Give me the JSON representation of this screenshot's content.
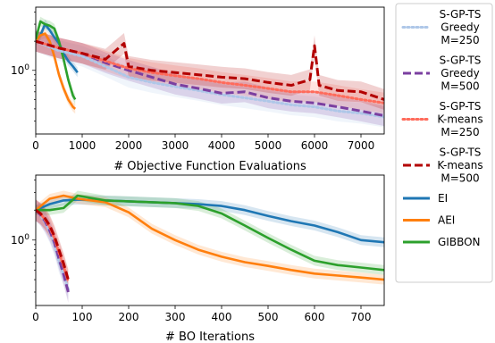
{
  "chart_data": [
    {
      "type": "line",
      "panel": "top",
      "xlabel": "# Objective Function Evaluations",
      "ylabel": "",
      "xlim": [
        0,
        7500
      ],
      "ylim": [
        0.22,
        4.5
      ],
      "yscale": "log",
      "xticks": [
        0,
        1000,
        2000,
        3000,
        4000,
        5000,
        6000,
        7000
      ],
      "yticks": [
        {
          "value": 1,
          "label": "10^0"
        }
      ],
      "series": [
        {
          "name": "EI",
          "color": "#1f77b4",
          "style": "solid",
          "x": [
            0,
            100,
            200,
            300,
            400,
            500,
            600,
            700,
            800,
            900
          ],
          "y": [
            2.0,
            2.3,
            3.0,
            2.6,
            2.2,
            1.9,
            1.5,
            1.25,
            1.1,
            0.95
          ]
        },
        {
          "name": "AEI",
          "color": "#ff7f0e",
          "style": "solid",
          "x": [
            0,
            100,
            200,
            300,
            400,
            500,
            600,
            700,
            800,
            850
          ],
          "y": [
            2.0,
            2.3,
            2.4,
            2.0,
            1.4,
            0.9,
            0.65,
            0.5,
            0.42,
            0.4
          ]
        },
        {
          "name": "GIBBON",
          "color": "#2ca02c",
          "style": "solid",
          "x": [
            0,
            100,
            200,
            300,
            400,
            500,
            600,
            700,
            800,
            850
          ],
          "y": [
            2.1,
            3.2,
            3.0,
            2.9,
            2.7,
            2.0,
            1.3,
            0.8,
            0.55,
            0.5
          ]
        },
        {
          "name": "S-GP-TS Greedy M=250",
          "color": "#aec7e8",
          "style": "dotted",
          "x": [
            0,
            500,
            1000,
            1500,
            2000,
            2500,
            3000,
            3500,
            4000,
            4500,
            5000,
            5500,
            6000,
            6500,
            7000,
            7500
          ],
          "y": [
            2.0,
            1.6,
            1.4,
            1.1,
            0.85,
            0.75,
            0.68,
            0.62,
            0.56,
            0.52,
            0.48,
            0.44,
            0.42,
            0.38,
            0.36,
            0.33
          ]
        },
        {
          "name": "S-GP-TS Greedy M=500",
          "color": "#7b3fa0",
          "style": "dashed",
          "x": [
            0,
            500,
            1000,
            1500,
            2000,
            2500,
            3000,
            3500,
            4000,
            4500,
            5000,
            5500,
            6000,
            6500,
            7000,
            7500
          ],
          "y": [
            2.0,
            1.7,
            1.5,
            1.2,
            1.0,
            0.85,
            0.72,
            0.65,
            0.58,
            0.6,
            0.52,
            0.48,
            0.46,
            0.42,
            0.38,
            0.34
          ]
        },
        {
          "name": "S-GP-TS K-means M=250",
          "color": "#ff6b5b",
          "style": "dotted",
          "x": [
            0,
            500,
            1000,
            1500,
            2000,
            2500,
            3000,
            3500,
            4000,
            4500,
            5000,
            5500,
            6000,
            6500,
            7000,
            7500
          ],
          "y": [
            2.0,
            1.7,
            1.5,
            1.25,
            1.05,
            0.95,
            0.88,
            0.82,
            0.75,
            0.7,
            0.65,
            0.6,
            0.6,
            0.55,
            0.5,
            0.46
          ]
        },
        {
          "name": "S-GP-TS K-means M=500",
          "color": "#b30000",
          "style": "dashed",
          "x": [
            0,
            500,
            1000,
            1500,
            1900,
            2000,
            2500,
            3000,
            3500,
            4000,
            4500,
            5000,
            5500,
            5900,
            6000,
            6100,
            6500,
            7000,
            7500
          ],
          "y": [
            2.0,
            1.7,
            1.5,
            1.3,
            1.9,
            1.1,
            1.0,
            0.95,
            0.9,
            0.85,
            0.82,
            0.75,
            0.7,
            0.8,
            1.8,
            0.7,
            0.62,
            0.6,
            0.5
          ]
        }
      ]
    },
    {
      "type": "line",
      "panel": "bottom",
      "xlabel": "# BO Iterations",
      "ylabel": "",
      "xlim": [
        0,
        750
      ],
      "ylim": [
        0.22,
        4.5
      ],
      "yscale": "log",
      "xticks": [
        0,
        100,
        200,
        300,
        400,
        500,
        600,
        700
      ],
      "yticks": [
        {
          "value": 1,
          "label": "10^0"
        }
      ],
      "series": [
        {
          "name": "EI",
          "color": "#1f77b4",
          "style": "solid",
          "x": [
            0,
            30,
            60,
            90,
            150,
            200,
            250,
            300,
            350,
            400,
            450,
            500,
            550,
            600,
            650,
            700,
            750
          ],
          "y": [
            2.0,
            2.3,
            2.5,
            2.55,
            2.5,
            2.45,
            2.4,
            2.35,
            2.3,
            2.2,
            2.0,
            1.75,
            1.55,
            1.4,
            1.2,
            1.0,
            0.95
          ]
        },
        {
          "name": "AEI",
          "color": "#ff7f0e",
          "style": "solid",
          "x": [
            0,
            30,
            60,
            90,
            150,
            200,
            250,
            300,
            350,
            400,
            450,
            500,
            550,
            600,
            650,
            700,
            750
          ],
          "y": [
            2.0,
            2.6,
            2.8,
            2.6,
            2.4,
            1.9,
            1.3,
            1.0,
            0.8,
            0.68,
            0.6,
            0.55,
            0.5,
            0.46,
            0.44,
            0.42,
            0.4
          ]
        },
        {
          "name": "GIBBON",
          "color": "#2ca02c",
          "style": "solid",
          "x": [
            0,
            30,
            60,
            90,
            150,
            200,
            250,
            300,
            350,
            400,
            450,
            500,
            550,
            600,
            650,
            700,
            750
          ],
          "y": [
            2.0,
            2.0,
            2.1,
            2.8,
            2.5,
            2.45,
            2.4,
            2.35,
            2.2,
            1.85,
            1.4,
            1.05,
            0.8,
            0.62,
            0.56,
            0.53,
            0.5
          ]
        },
        {
          "name": "S-GP-TS Greedy M=250",
          "color": "#aec7e8",
          "style": "dotted",
          "x": [
            0,
            10,
            20,
            30,
            40,
            50,
            60,
            70
          ],
          "y": [
            2.0,
            1.8,
            1.5,
            1.2,
            0.9,
            0.6,
            0.45,
            0.32
          ]
        },
        {
          "name": "S-GP-TS Greedy M=500",
          "color": "#7b3fa0",
          "style": "dashed",
          "x": [
            0,
            10,
            20,
            30,
            40,
            50,
            60,
            70
          ],
          "y": [
            2.0,
            1.8,
            1.55,
            1.25,
            0.95,
            0.65,
            0.45,
            0.3
          ]
        },
        {
          "name": "S-GP-TS K-means M=250",
          "color": "#ff6b5b",
          "style": "dotted",
          "x": [
            0,
            10,
            20,
            30,
            40,
            50,
            60,
            70
          ],
          "y": [
            2.0,
            1.85,
            1.6,
            1.35,
            1.05,
            0.75,
            0.55,
            0.38
          ]
        },
        {
          "name": "S-GP-TS K-means M=500",
          "color": "#b30000",
          "style": "dashed",
          "x": [
            0,
            10,
            20,
            30,
            40,
            50,
            60,
            70
          ],
          "y": [
            2.0,
            1.85,
            1.65,
            1.4,
            1.1,
            0.8,
            0.58,
            0.4
          ]
        }
      ]
    }
  ],
  "legend": {
    "placement": "right",
    "entries": [
      {
        "lines": [
          "S-GP-TS",
          "Greedy",
          "M=250"
        ],
        "color": "#aec7e8",
        "style": "dotted"
      },
      {
        "lines": [
          "S-GP-TS",
          "Greedy",
          "M=500"
        ],
        "color": "#7b3fa0",
        "style": "dashed"
      },
      {
        "lines": [
          "S-GP-TS",
          "K-means",
          "M=250"
        ],
        "color": "#ff6b5b",
        "style": "dotted"
      },
      {
        "lines": [
          "S-GP-TS",
          "K-means",
          "M=500"
        ],
        "color": "#b30000",
        "style": "dashed"
      },
      {
        "lines": [
          "EI"
        ],
        "color": "#1f77b4",
        "style": "solid"
      },
      {
        "lines": [
          "AEI"
        ],
        "color": "#ff7f0e",
        "style": "solid"
      },
      {
        "lines": [
          "GIBBON"
        ],
        "color": "#2ca02c",
        "style": "solid"
      }
    ]
  }
}
